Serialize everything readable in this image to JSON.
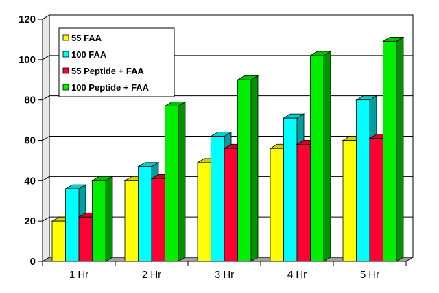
{
  "chart_data": {
    "type": "bar",
    "title": "",
    "xlabel": "",
    "ylabel": "",
    "categories": [
      "1 Hr",
      "2 Hr",
      "3 Hr",
      "4 Hr",
      "5 Hr"
    ],
    "yticks": [
      "0",
      "20",
      "40",
      "60",
      "80",
      "100",
      "120"
    ],
    "ylim": [
      0,
      120
    ],
    "grid": true,
    "legend_position": "top-left",
    "three_d": true,
    "series": [
      {
        "name": "55 FAA",
        "color": "#ffff00",
        "values": [
          20,
          40,
          49,
          56,
          60
        ]
      },
      {
        "name": "100 FAA",
        "color": "#00ffff",
        "values": [
          36,
          47,
          62,
          71,
          80
        ]
      },
      {
        "name": "55 Peptide + FAA",
        "color": "#ff0033",
        "values": [
          22,
          41,
          56,
          58,
          61
        ]
      },
      {
        "name": "100 Peptide + FAA",
        "color": "#00ee00",
        "values": [
          40,
          77,
          90,
          102,
          109
        ]
      }
    ]
  }
}
